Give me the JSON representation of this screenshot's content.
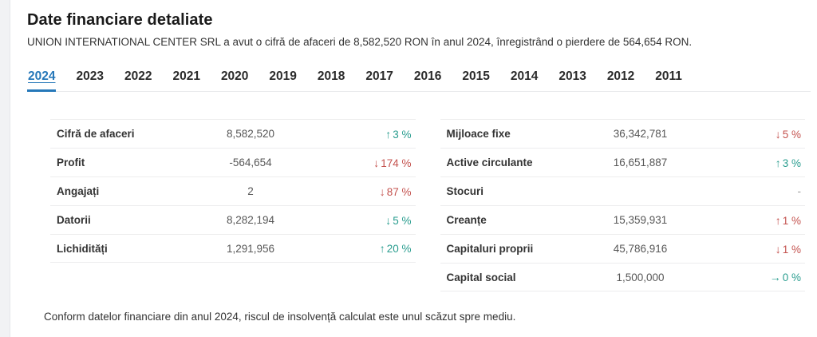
{
  "page": {
    "title": "Date financiare detaliate",
    "subtitle": "UNION INTERNATIONAL CENTER SRL a avut o cifră de afaceri de 8,582,520 RON în anul 2024, înregistrând o pierdere de 564,654 RON.",
    "footer_note": "Conform datelor financiare din anul 2024, riscul de insolvență calculat este unul scăzut spre mediu."
  },
  "tabs": {
    "active_year": "2024",
    "years": [
      "2024",
      "2023",
      "2022",
      "2021",
      "2020",
      "2019",
      "2018",
      "2017",
      "2016",
      "2015",
      "2014",
      "2013",
      "2012",
      "2011"
    ]
  },
  "colors": {
    "accent_blue": "#2678b9",
    "positive_teal": "#2a9d8f",
    "negative_red": "#c4534f",
    "neutral_gray": "#9a9a9a"
  },
  "icons": {
    "up_arrow": "↑",
    "down_arrow": "↓",
    "flat_arrow": "→"
  },
  "tables": {
    "left": {
      "rows": [
        {
          "label": "Cifră de afaceri",
          "value": "8,582,520",
          "trend_icon": "trend-up-icon",
          "arrow": "↑",
          "pct": "3 %",
          "tone": "positive"
        },
        {
          "label": "Profit",
          "value": "-564,654",
          "trend_icon": "trend-down-icon",
          "arrow": "↓",
          "pct": "174 %",
          "tone": "negative"
        },
        {
          "label": "Angajați",
          "value": "2",
          "trend_icon": "trend-down-icon",
          "arrow": "↓",
          "pct": "87 %",
          "tone": "negative"
        },
        {
          "label": "Datorii",
          "value": "8,282,194",
          "trend_icon": "trend-down-icon",
          "arrow": "↓",
          "pct": "5 %",
          "tone": "positive"
        },
        {
          "label": "Lichidități",
          "value": "1,291,956",
          "trend_icon": "trend-up-icon",
          "arrow": "↑",
          "pct": "20 %",
          "tone": "positive"
        }
      ]
    },
    "right": {
      "rows": [
        {
          "label": "Mijloace fixe",
          "value": "36,342,781",
          "trend_icon": "trend-down-icon",
          "arrow": "↓",
          "pct": "5 %",
          "tone": "negative"
        },
        {
          "label": "Active circulante",
          "value": "16,651,887",
          "trend_icon": "trend-up-icon",
          "arrow": "↑",
          "pct": "3 %",
          "tone": "positive"
        },
        {
          "label": "Stocuri",
          "value": "",
          "trend_icon": "",
          "arrow": "",
          "pct": "-",
          "tone": "neutral"
        },
        {
          "label": "Creanțe",
          "value": "15,359,931",
          "trend_icon": "trend-up-icon",
          "arrow": "↑",
          "pct": "1 %",
          "tone": "negative"
        },
        {
          "label": "Capitaluri proprii",
          "value": "45,786,916",
          "trend_icon": "trend-down-icon",
          "arrow": "↓",
          "pct": "1 %",
          "tone": "negative"
        },
        {
          "label": "Capital social",
          "value": "1,500,000",
          "trend_icon": "trend-right-icon",
          "arrow": "→",
          "pct": "0 %",
          "tone": "positive"
        }
      ]
    }
  }
}
